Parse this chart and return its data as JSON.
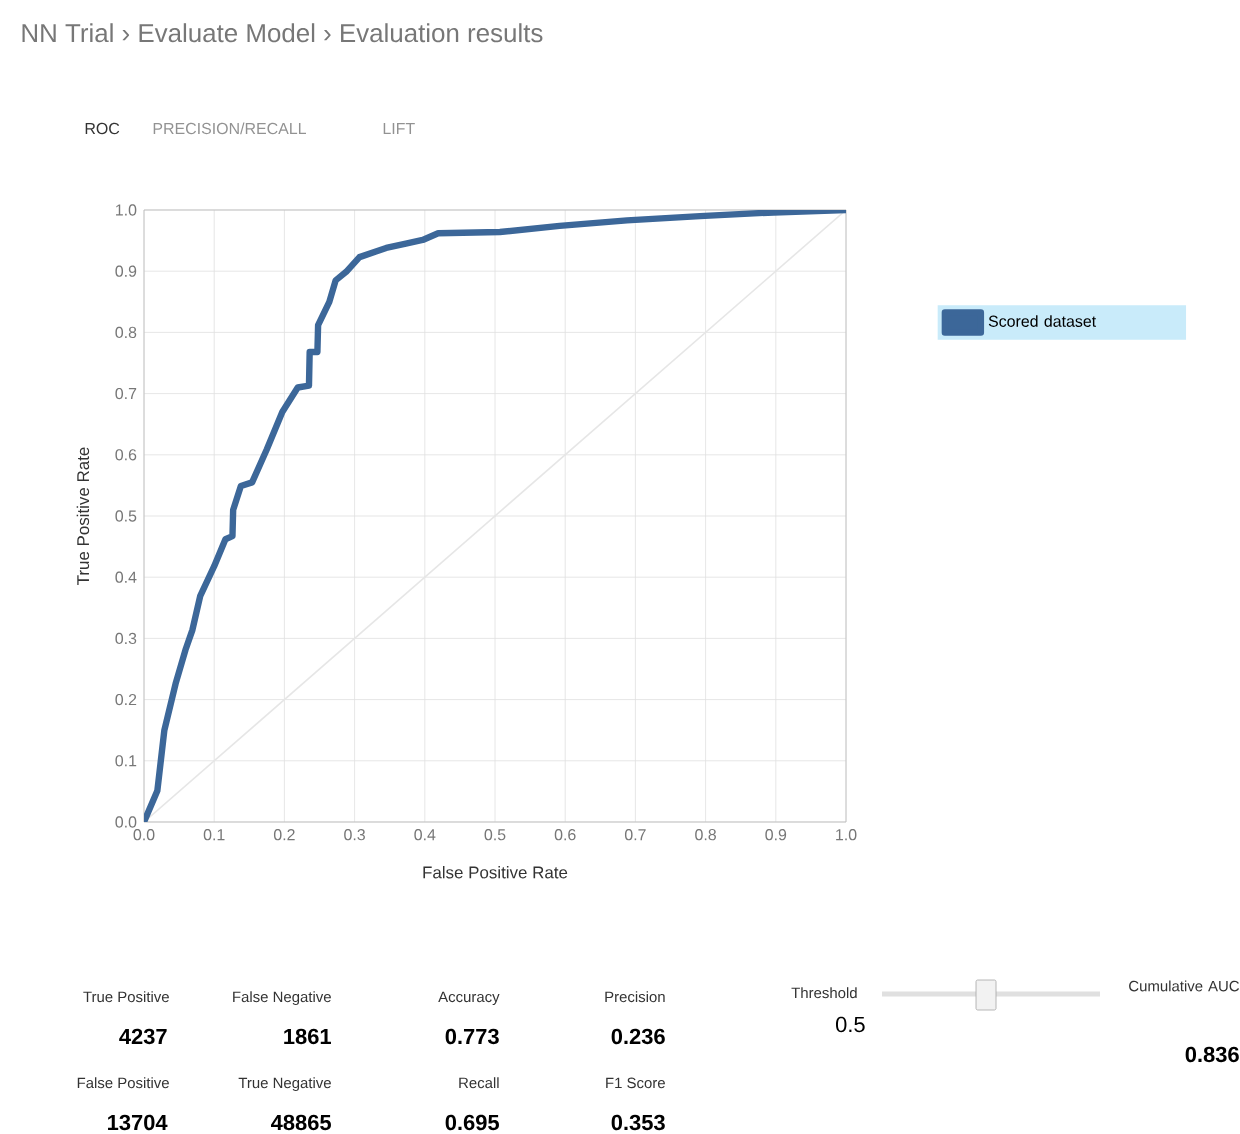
{
  "chart_data": {
    "type": "line",
    "title": "NN Trial › Evaluate Model › Evaluation results",
    "xlabel": "False Positive Rate",
    "ylabel": "True Positive Rate",
    "xlim": [
      0,
      1
    ],
    "ylim": [
      0,
      1
    ],
    "xticks": [
      {
        "value": 0,
        "label": "0.0"
      },
      0.1,
      0.2,
      0.3,
      0.4,
      0.5,
      0.6,
      0.7,
      0.8,
      0.9,
      {
        "value": 1,
        "label": "1.0"
      }
    ],
    "yticks": [
      {
        "value": 0,
        "label": "0.0"
      },
      0.1,
      0.2,
      0.3,
      0.4,
      0.5,
      0.6,
      0.7,
      0.8,
      0.9,
      {
        "value": 1,
        "label": "1.0"
      }
    ],
    "grid": true,
    "legend": "right",
    "series": [
      {
        "type": "line",
        "color": "#e6e6e6",
        "x": [
          0,
          1
        ],
        "values": [
          0,
          1
        ]
      },
      {
        "name": "Scored dataset",
        "color": "#3c6799",
        "x": [
          0,
          0.019,
          0.029,
          0.045,
          0.059,
          0.069,
          0.08,
          0.1,
          0.116,
          0.126,
          0.127,
          0.138,
          0.154,
          0.175,
          0.197,
          0.219,
          0.235,
          0.236,
          0.247,
          0.248,
          0.264,
          0.273,
          0.288,
          0.307,
          0.345,
          0.373,
          0.397,
          0.419,
          0.507,
          0.592,
          0.688,
          0.792,
          0.897,
          1
        ],
        "values": [
          0,
          0.051,
          0.15,
          0.226,
          0.281,
          0.314,
          0.369,
          0.418,
          0.462,
          0.467,
          0.51,
          0.549,
          0.555,
          0.609,
          0.67,
          0.71,
          0.713,
          0.768,
          0.768,
          0.812,
          0.85,
          0.885,
          0.899,
          0.923,
          0.938,
          0.945,
          0.951,
          0.962,
          0.964,
          0.974,
          0.983,
          0.99,
          0.996,
          1
        ]
      }
    ],
    "annotations": [
      "ROC",
      "PRECISION/RECALL",
      "LIFT",
      "True Positive",
      "4237",
      "False Negative",
      "1861",
      "Accuracy",
      "0.773",
      "Precision",
      "0.236",
      "False Positive",
      "13704",
      "True Negative",
      "48865",
      "Recall",
      "0.695",
      "F1 Score",
      "0.353",
      "Threshold",
      "0.5",
      "Cumulative AUC",
      "0.836"
    ]
  }
}
